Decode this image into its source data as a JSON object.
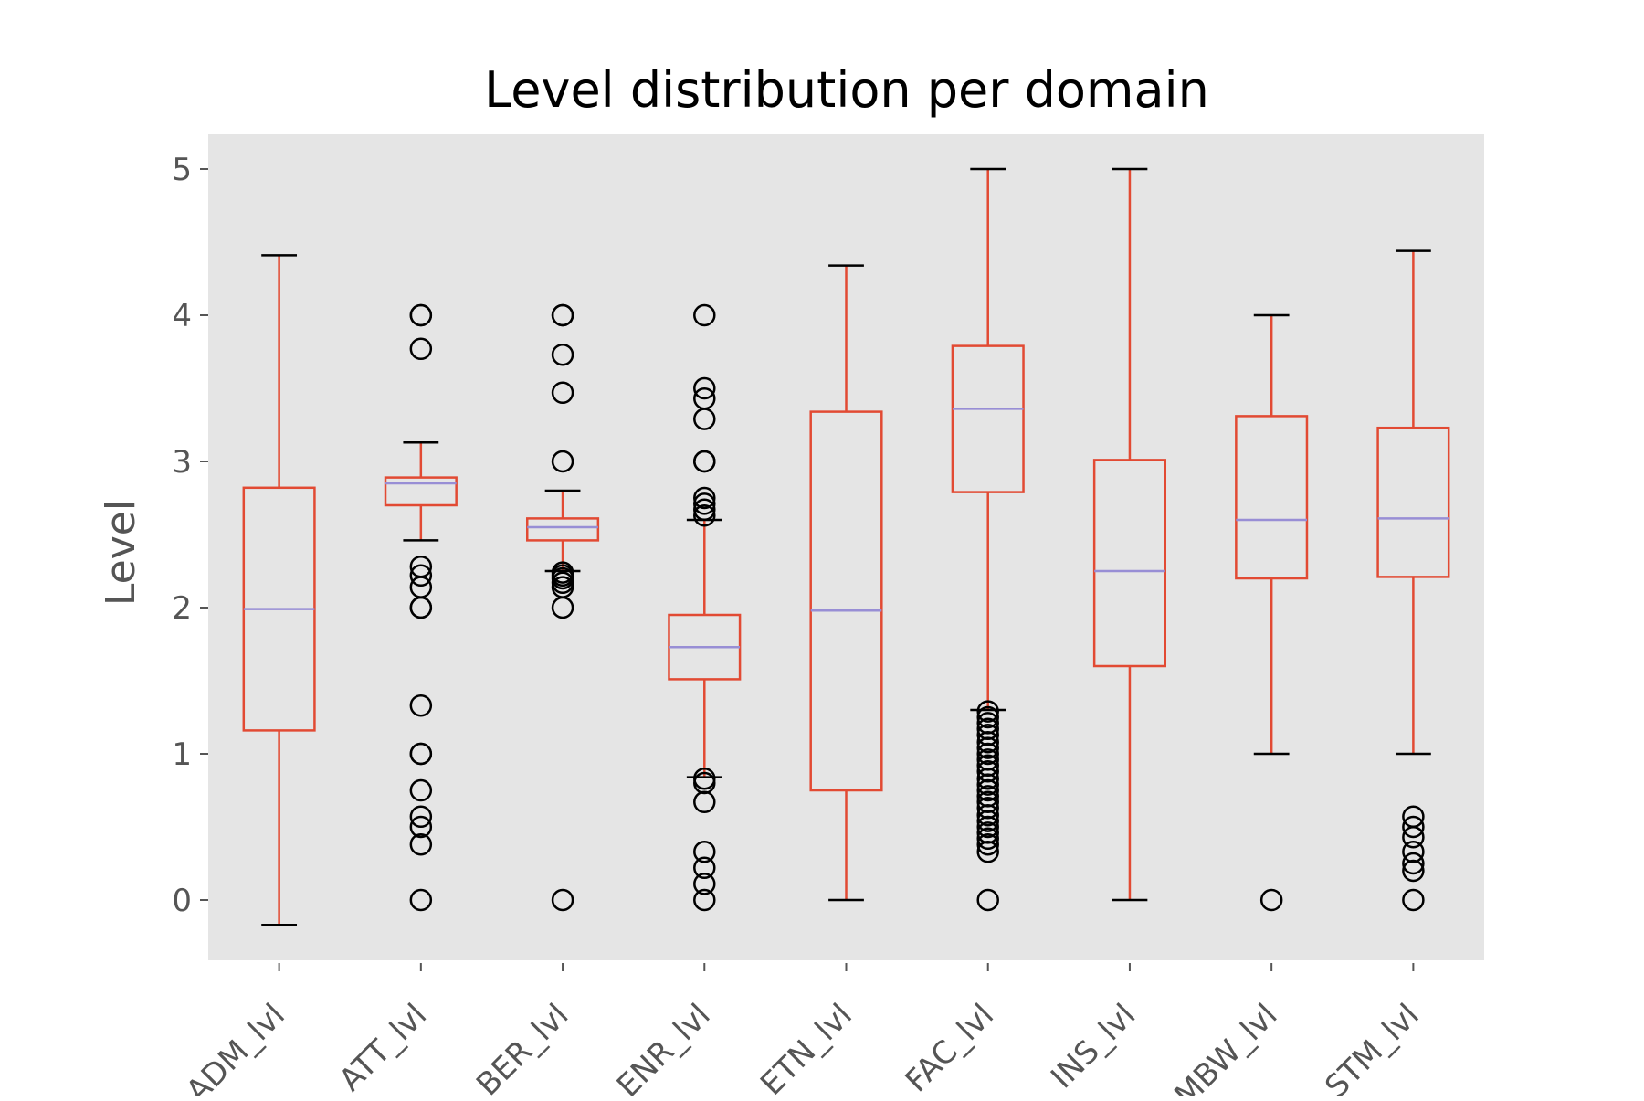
{
  "chart_data": {
    "type": "box",
    "title": "Level distribution per domain",
    "xlabel": "",
    "ylabel": "Level",
    "ylim": [
      -0.42,
      5.25
    ],
    "yticks": [
      0,
      1,
      2,
      3,
      4,
      5
    ],
    "grid": false,
    "style": "ggplot",
    "colors": {
      "background": "#E5E5E5",
      "box": "#E24A33",
      "median": "#988ED5",
      "cap": "#000000",
      "flier": "#000000"
    },
    "categories": [
      "ADM_lvl",
      "ATT_lvl",
      "BER_lvl",
      "ENR_lvl",
      "ETN_lvl",
      "FAC_lvl",
      "INS_lvl",
      "MBW_lvl",
      "STM_lvl"
    ],
    "boxes": [
      {
        "category": "ADM_lvl",
        "whisker_low": -0.17,
        "q1": 1.16,
        "median": 1.99,
        "q3": 2.82,
        "whisker_high": 4.41,
        "fliers": []
      },
      {
        "category": "ATT_lvl",
        "whisker_low": 2.46,
        "q1": 2.7,
        "median": 2.85,
        "q3": 2.89,
        "whisker_high": 3.13,
        "fliers": [
          4.0,
          4.0,
          3.77,
          2.28,
          2.22,
          2.14,
          2.0,
          2.0,
          1.33,
          1.0,
          1.0,
          0.75,
          0.57,
          0.5,
          0.38,
          0.0
        ]
      },
      {
        "category": "BER_lvl",
        "whisker_low": 2.25,
        "q1": 2.46,
        "median": 2.55,
        "q3": 2.61,
        "whisker_high": 2.8,
        "fliers": [
          4.0,
          4.0,
          3.73,
          3.47,
          3.0,
          2.24,
          2.22,
          2.2,
          2.17,
          2.14,
          2.0,
          0.0
        ]
      },
      {
        "category": "ENR_lvl",
        "whisker_low": 0.84,
        "q1": 1.51,
        "median": 1.73,
        "q3": 1.95,
        "whisker_high": 2.6,
        "fliers": [
          4.0,
          3.5,
          3.43,
          3.29,
          3.0,
          3.0,
          2.75,
          2.71,
          2.67,
          2.63,
          0.83,
          0.8,
          0.67,
          0.33,
          0.22,
          0.11,
          0.0
        ]
      },
      {
        "category": "ETN_lvl",
        "whisker_low": 0.0,
        "q1": 0.75,
        "median": 1.98,
        "q3": 3.34,
        "whisker_high": 4.34,
        "fliers": []
      },
      {
        "category": "FAC_lvl",
        "whisker_low": 1.3,
        "q1": 2.79,
        "median": 3.36,
        "q3": 3.79,
        "whisker_high": 5.0,
        "fliers": [
          1.29,
          1.25,
          1.21,
          1.17,
          1.13,
          1.08,
          1.04,
          1.0,
          0.96,
          0.92,
          0.88,
          0.83,
          0.79,
          0.75,
          0.71,
          0.67,
          0.63,
          0.58,
          0.54,
          0.5,
          0.46,
          0.42,
          0.38,
          0.33,
          0.0
        ]
      },
      {
        "category": "INS_lvl",
        "whisker_low": 0.0,
        "q1": 1.6,
        "median": 2.25,
        "q3": 3.01,
        "whisker_high": 5.0,
        "fliers": []
      },
      {
        "category": "MBW_lvl",
        "whisker_low": 1.0,
        "q1": 2.2,
        "median": 2.6,
        "q3": 3.31,
        "whisker_high": 4.0,
        "fliers": [
          0.0
        ]
      },
      {
        "category": "STM_lvl",
        "whisker_low": 1.0,
        "q1": 2.21,
        "median": 2.61,
        "q3": 3.23,
        "whisker_high": 4.44,
        "fliers": [
          0.57,
          0.5,
          0.43,
          0.33,
          0.25,
          0.2,
          0.0
        ]
      }
    ]
  }
}
